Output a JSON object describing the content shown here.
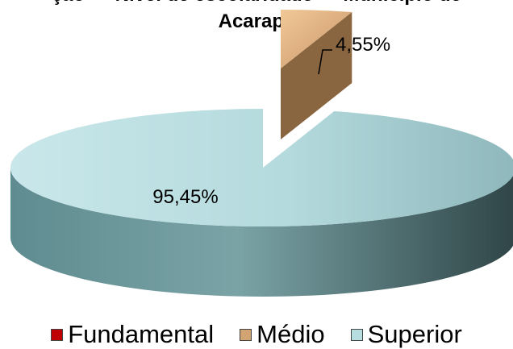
{
  "chart_data": {
    "type": "pie",
    "title_partial": "ção — Nível de escolaridade — Municipio de",
    "title": "Acarape",
    "categories": [
      "Fundamental",
      "Médio",
      "Superior"
    ],
    "values": [
      0,
      4.55,
      95.45
    ],
    "data_labels": [
      "",
      "4,55%",
      "95,45%"
    ],
    "colors": [
      "#c00000",
      "#d2a373",
      "#b6dde0"
    ],
    "legend_position": "bottom"
  }
}
